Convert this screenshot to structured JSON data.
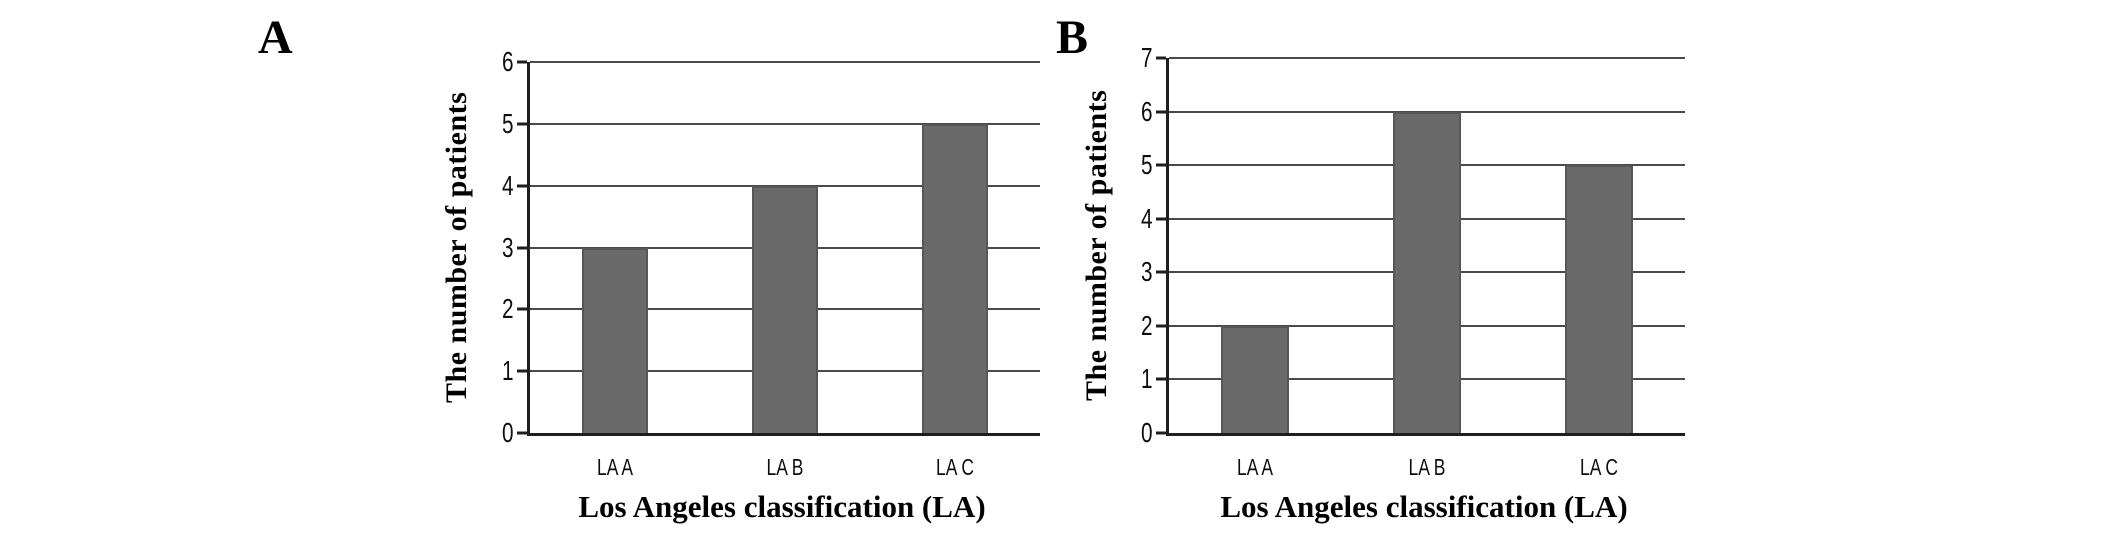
{
  "figure": {
    "background": "#ffffff"
  },
  "colors": {
    "grid": "#4a4a4a",
    "axis": "#1f1f1f",
    "text": "#0d0d0d"
  },
  "chart_data": [
    {
      "panel_label": "A",
      "type": "bar",
      "categories": [
        "LA A",
        "LA B",
        "LA C"
      ],
      "values": [
        3,
        4,
        5
      ],
      "xlabel": "Los Angeles classification (LA)",
      "ylabel": "The number of patients",
      "ylim": [
        0,
        6
      ],
      "yticks": [
        0,
        1,
        2,
        3,
        4,
        5,
        6
      ],
      "grid": "horizontal",
      "legend_position": "none",
      "bar_color": "#6a6a6a",
      "bar_edge_color": "#575757"
    },
    {
      "panel_label": "B",
      "type": "bar",
      "categories": [
        "LA A",
        "LA B",
        "LA C"
      ],
      "values": [
        2,
        6,
        5
      ],
      "xlabel": "Los Angeles classification (LA)",
      "ylabel": "The number of patients",
      "ylim": [
        0,
        7
      ],
      "yticks": [
        0,
        1,
        2,
        3,
        4,
        5,
        6,
        7
      ],
      "grid": "horizontal",
      "legend_position": "none",
      "bar_color": "#6a6a6a",
      "bar_edge_color": "#575757"
    }
  ]
}
